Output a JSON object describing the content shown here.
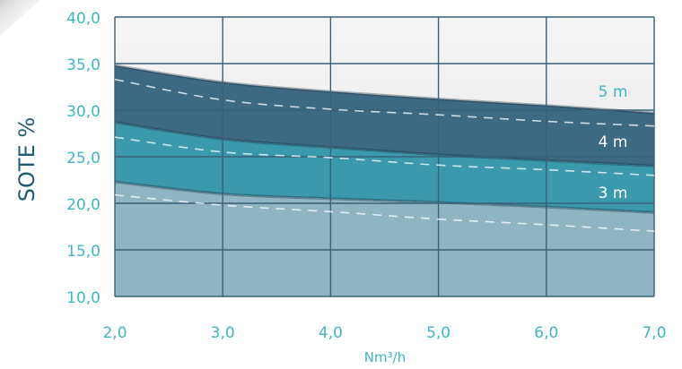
{
  "chart_data": {
    "type": "area",
    "title": "",
    "xlabel": "Nm³/h",
    "ylabel": "SOTE %",
    "x": [
      2.0,
      3.0,
      4.0,
      5.0,
      6.0,
      7.0
    ],
    "x_ticks": [
      "2,0",
      "3,0",
      "4,0",
      "5,0",
      "6,0",
      "7,0"
    ],
    "y_ticks": [
      "10,0",
      "15,0",
      "20,0",
      "25,0",
      "30,0",
      "35,0",
      "40,0"
    ],
    "xlim": [
      2.0,
      7.0
    ],
    "ylim": [
      10.0,
      40.0
    ],
    "grid": true,
    "bands": [
      {
        "label": "5 m",
        "upper": [
          34.8,
          33.0,
          32.0,
          31.2,
          30.5,
          29.7
        ],
        "lower": [
          28.7,
          26.9,
          26.0,
          25.2,
          24.6,
          24.0
        ],
        "dashed": [
          33.3,
          31.1,
          30.1,
          29.5,
          28.8,
          28.3
        ],
        "fill": "#3d6a82",
        "label_color": "#3fb6c4"
      },
      {
        "label": "4 m",
        "upper": [
          28.7,
          26.9,
          26.0,
          25.2,
          24.6,
          24.0
        ],
        "lower": [
          22.3,
          21.0,
          20.5,
          20.1,
          19.6,
          19.0
        ],
        "dashed": [
          27.1,
          25.5,
          24.9,
          24.1,
          23.6,
          23.0
        ],
        "fill": "#3a9aab",
        "label_color": "#ffffff"
      },
      {
        "label": "3 m",
        "upper": [
          22.3,
          21.0,
          20.5,
          20.1,
          19.6,
          19.0
        ],
        "lower": [
          10.0,
          10.0,
          10.0,
          10.0,
          10.0,
          10.0
        ],
        "dashed": [
          20.9,
          19.8,
          19.1,
          18.3,
          17.7,
          17.0
        ],
        "fill": "#8fb5c4",
        "label_color": "#ffffff"
      }
    ],
    "colors": {
      "background_top": "#f3f3f3",
      "grid": "#3a6077",
      "tick_text": "#3fb6c4",
      "ylabel_text": "#1c5d74"
    }
  }
}
